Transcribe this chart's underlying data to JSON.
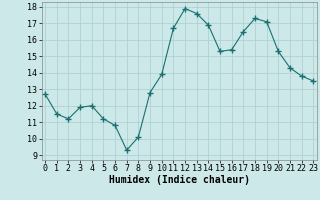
{
  "x": [
    0,
    1,
    2,
    3,
    4,
    5,
    6,
    7,
    8,
    9,
    10,
    11,
    12,
    13,
    14,
    15,
    16,
    17,
    18,
    19,
    20,
    21,
    22,
    23
  ],
  "y": [
    12.7,
    11.5,
    11.2,
    11.9,
    12.0,
    11.2,
    10.8,
    9.3,
    10.1,
    12.8,
    13.9,
    16.7,
    17.9,
    17.6,
    16.9,
    15.3,
    15.4,
    16.5,
    17.3,
    17.1,
    15.3,
    14.3,
    13.8,
    13.5
  ],
  "line_color": "#1a7070",
  "marker": "+",
  "marker_size": 4,
  "bg_color": "#cce8e8",
  "grid_color": "#aacece",
  "xlabel": "Humidex (Indice chaleur)",
  "ylim_min": 9,
  "ylim_max": 18,
  "xlim_min": 0,
  "xlim_max": 23,
  "yticks": [
    9,
    10,
    11,
    12,
    13,
    14,
    15,
    16,
    17,
    18
  ],
  "xticks": [
    0,
    1,
    2,
    3,
    4,
    5,
    6,
    7,
    8,
    9,
    10,
    11,
    12,
    13,
    14,
    15,
    16,
    17,
    18,
    19,
    20,
    21,
    22,
    23
  ],
  "tick_label_fontsize": 6,
  "xlabel_fontsize": 7,
  "linewidth": 0.8,
  "marker_linewidth": 1.0
}
